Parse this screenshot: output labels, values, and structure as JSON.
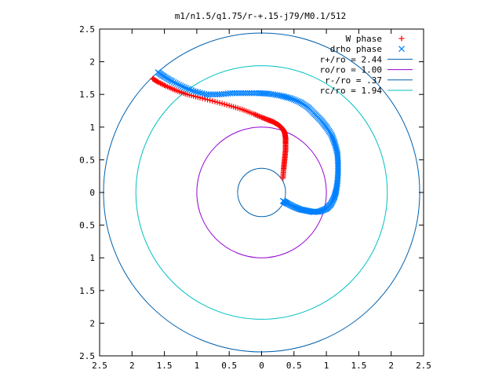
{
  "chart_data": {
    "type": "scatter",
    "title": "m1/n1.5/q1.75/r-+.15-j79/M0.1/512",
    "xlabel": "",
    "ylabel": "",
    "xlim": [
      -2.5,
      2.5
    ],
    "ylim": [
      -2.5,
      2.5
    ],
    "x_tick_values": [
      -2.5,
      -2,
      -1.5,
      -1,
      -0.5,
      0,
      0.5,
      1,
      1.5,
      2,
      2.5
    ],
    "x_tick_labels": [
      "2.5",
      "2",
      "1.5",
      "1",
      "0.5",
      "0",
      "0.5",
      "1",
      "1.5",
      "2",
      "2.5"
    ],
    "y_tick_values": [
      2.5,
      2,
      1.5,
      1,
      0.5,
      0,
      -0.5,
      -1,
      -1.5,
      -2,
      -2.5
    ],
    "y_tick_labels": [
      "2.5",
      "2",
      "1.5",
      "1",
      "0.5",
      "0",
      "0.5",
      "1",
      "1.5",
      "2",
      "2.5"
    ],
    "grid": false,
    "legend_position": "top-right",
    "series": [
      {
        "name": "W phase",
        "marker": "plus",
        "color": "#ff0000",
        "x": [
          0.33,
          0.34,
          0.35,
          0.36,
          0.37,
          0.37,
          0.37,
          0.36,
          0.34,
          0.3,
          0.25,
          0.18,
          0.1,
          0.0,
          -0.12,
          -0.3,
          -0.5,
          -0.72,
          -0.95,
          -1.15,
          -1.32,
          -1.48,
          -1.6,
          -1.68
        ],
        "y": [
          0.22,
          0.35,
          0.45,
          0.55,
          0.65,
          0.75,
          0.83,
          0.9,
          0.95,
          1.0,
          1.04,
          1.08,
          1.11,
          1.15,
          1.2,
          1.27,
          1.33,
          1.39,
          1.45,
          1.5,
          1.56,
          1.63,
          1.69,
          1.74
        ]
      },
      {
        "name": "drho phase",
        "marker": "x",
        "color": "#0080ff",
        "x": [
          0.33,
          0.4,
          0.5,
          0.6,
          0.7,
          0.8,
          0.9,
          1.0,
          1.07,
          1.12,
          1.15,
          1.17,
          1.18,
          1.18,
          1.17,
          1.13,
          1.08,
          1.0,
          0.92,
          0.82,
          0.72,
          0.6,
          0.45,
          0.3,
          0.12,
          -0.05,
          -0.25,
          -0.45,
          -0.65,
          -0.85,
          -1.05,
          -1.22,
          -1.38,
          -1.5,
          -1.6
        ],
        "y": [
          -0.13,
          -0.17,
          -0.22,
          -0.26,
          -0.28,
          -0.3,
          -0.29,
          -0.25,
          -0.18,
          -0.08,
          0.02,
          0.15,
          0.3,
          0.45,
          0.6,
          0.75,
          0.88,
          1.0,
          1.1,
          1.2,
          1.3,
          1.38,
          1.44,
          1.48,
          1.51,
          1.52,
          1.52,
          1.52,
          1.5,
          1.5,
          1.55,
          1.62,
          1.7,
          1.77,
          1.84
        ]
      }
    ],
    "circles": [
      {
        "name": "r+/ro = 2.44",
        "radius": 2.44,
        "color": "#0060ad"
      },
      {
        "name": "ro/ro = 1.00",
        "radius": 1.0,
        "color": "#9400d3"
      },
      {
        "name": "r-/ro = .37",
        "radius": 0.37,
        "color": "#0060ad"
      },
      {
        "name": "rc/ro = 1.94",
        "radius": 1.94,
        "color": "#00c0c0"
      }
    ]
  }
}
